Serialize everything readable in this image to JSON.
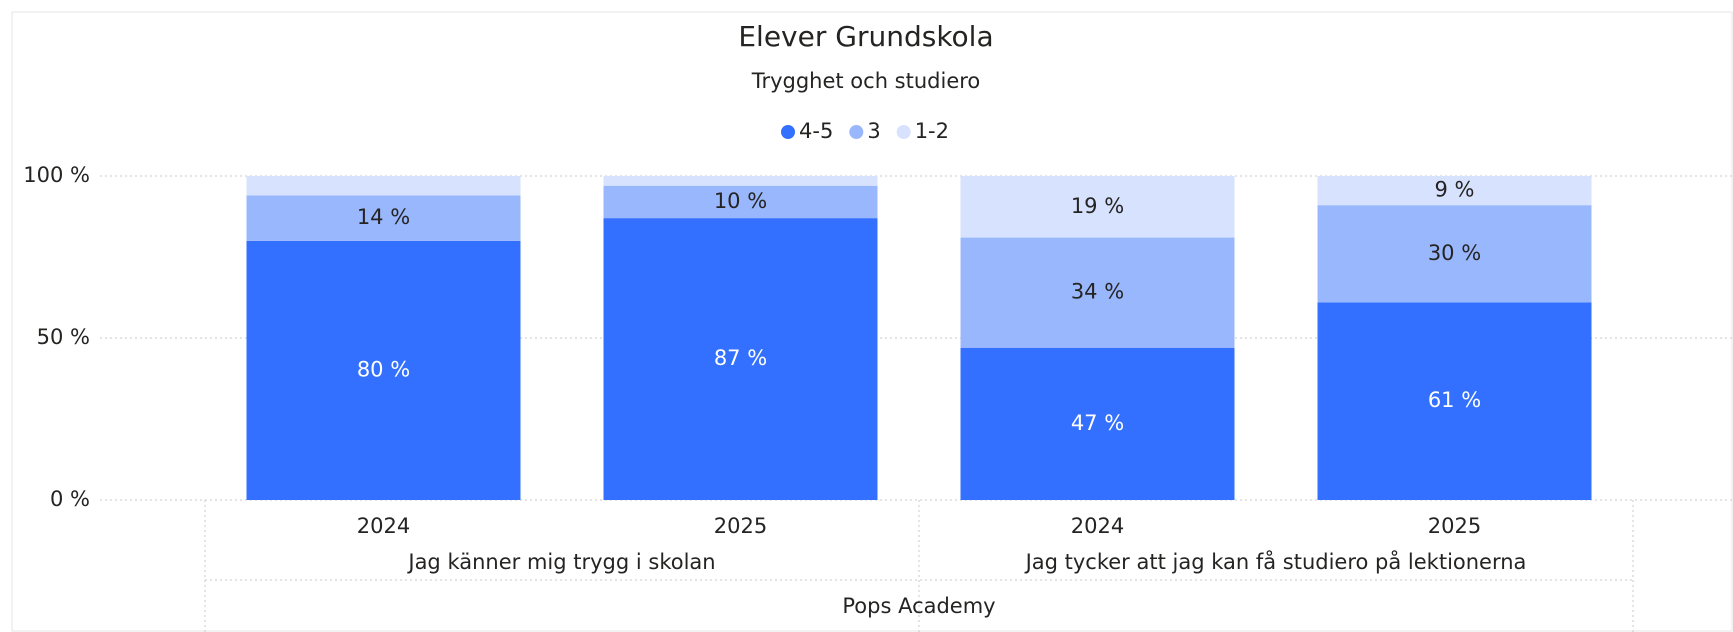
{
  "chart_data": {
    "type": "stacked_bar",
    "title": "Elever Grundskola",
    "subtitle": "Trygghet och studiero",
    "categories": [
      "2024",
      "2025",
      "2024",
      "2025"
    ],
    "groups": [
      "Jag känner mig trygg i skolan",
      "Jag tycker att jag kan få studiero på lektionerna"
    ],
    "supergroup": "Pops Academy",
    "series": [
      {
        "name": "4-5",
        "color": "#3370ff",
        "values": [
          80,
          87,
          47,
          61
        ],
        "value_labels": [
          "80 %",
          "87 %",
          "47 %",
          "61 %"
        ]
      },
      {
        "name": "3",
        "color": "#99b7fc",
        "values": [
          14,
          10,
          34,
          30
        ],
        "value_labels": [
          "14 %",
          "10 %",
          "34 %",
          "30 %"
        ]
      },
      {
        "name": "1-2",
        "color": "#d6e2fe",
        "values": [
          6,
          3,
          19,
          9
        ],
        "value_labels": [
          null,
          null,
          "19 %",
          "9 %"
        ]
      }
    ],
    "ylim": [
      0,
      100
    ],
    "yticks": [
      {
        "value": 0,
        "label": "0 %"
      },
      {
        "value": 50,
        "label": "50 %"
      },
      {
        "value": 100,
        "label": "100 %"
      }
    ],
    "grid": true,
    "legend": "top"
  }
}
